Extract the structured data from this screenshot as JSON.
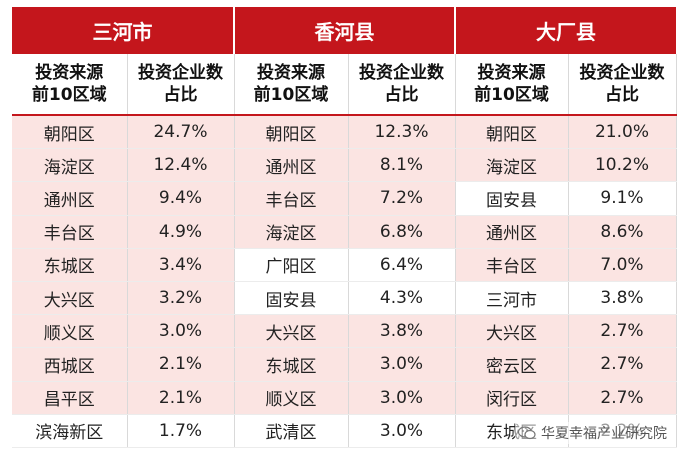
{
  "regions": [
    "三河市",
    "香河县",
    "大厂县"
  ],
  "sub_headers": {
    "source": [
      "投资来源",
      "前10区域"
    ],
    "share": [
      "投资企业数",
      "占比"
    ]
  },
  "columns": [
    {
      "rows": [
        {
          "area": "朝阳区",
          "pct": "24.7%"
        },
        {
          "area": "海淀区",
          "pct": "12.4%"
        },
        {
          "area": "通州区",
          "pct": "9.4%"
        },
        {
          "area": "丰台区",
          "pct": "4.9%"
        },
        {
          "area": "东城区",
          "pct": "3.4%"
        },
        {
          "area": "大兴区",
          "pct": "3.2%"
        },
        {
          "area": "顺义区",
          "pct": "3.0%"
        },
        {
          "area": "西城区",
          "pct": "2.1%"
        },
        {
          "area": "昌平区",
          "pct": "2.1%"
        },
        {
          "area": "滨海新区",
          "pct": "1.7%"
        }
      ]
    },
    {
      "rows": [
        {
          "area": "朝阳区",
          "pct": "12.3%"
        },
        {
          "area": "通州区",
          "pct": "8.1%"
        },
        {
          "area": "丰台区",
          "pct": "7.2%"
        },
        {
          "area": "海淀区",
          "pct": "6.8%"
        },
        {
          "area": "广阳区",
          "pct": "6.4%"
        },
        {
          "area": "固安县",
          "pct": "4.3%"
        },
        {
          "area": "大兴区",
          "pct": "3.8%"
        },
        {
          "area": "东城区",
          "pct": "3.0%"
        },
        {
          "area": "顺义区",
          "pct": "3.0%"
        },
        {
          "area": "武清区",
          "pct": "3.0%"
        }
      ]
    },
    {
      "rows": [
        {
          "area": "朝阳区",
          "pct": "21.0%"
        },
        {
          "area": "海淀区",
          "pct": "10.2%"
        },
        {
          "area": "固安县",
          "pct": "9.1%"
        },
        {
          "area": "通州区",
          "pct": "8.6%"
        },
        {
          "area": "丰台区",
          "pct": "7.0%"
        },
        {
          "area": "三河市",
          "pct": "3.8%"
        },
        {
          "area": "大兴区",
          "pct": "2.7%"
        },
        {
          "area": "密云区",
          "pct": "2.7%"
        },
        {
          "area": "闵行区",
          "pct": "2.7%"
        },
        {
          "area": "东城区",
          "pct": "2.2%"
        }
      ]
    }
  ],
  "watermark": "华夏幸福产业研究院",
  "colors": {
    "header_red": "#c4161c",
    "stripe_pink": "#fbe4e2"
  }
}
